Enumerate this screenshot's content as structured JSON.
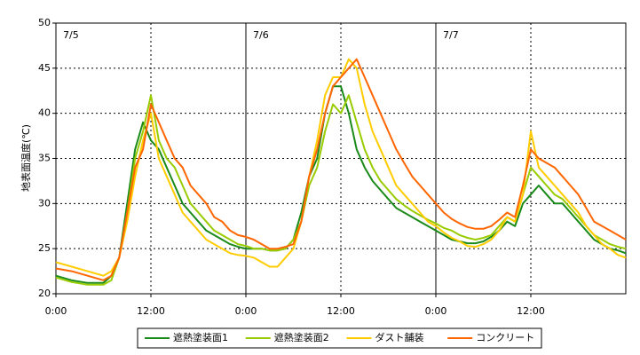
{
  "chart_data": {
    "type": "line",
    "y_label": "地表面温度(℃)",
    "x": [
      0,
      2,
      4,
      6,
      7,
      8,
      9,
      10,
      11,
      12,
      13,
      14,
      15,
      16,
      17,
      18,
      19,
      20,
      21,
      22,
      23,
      24,
      25,
      26,
      27,
      28,
      29,
      30,
      31,
      32,
      33,
      34,
      35,
      36,
      37,
      38,
      39,
      40,
      41,
      42,
      43,
      44,
      45,
      46,
      47,
      48,
      49,
      50,
      51,
      52,
      53,
      54,
      55,
      56,
      57,
      58,
      59,
      60,
      61,
      62,
      63,
      64,
      65,
      66,
      67,
      68,
      69,
      70,
      71,
      72
    ],
    "series": [
      {
        "name": "遮熱塗装面1",
        "color": "#1a8a1a",
        "values": [
          22,
          21.5,
          21.2,
          21.2,
          22,
          24,
          30,
          36,
          39,
          37,
          36,
          34,
          32,
          30,
          29,
          28,
          27,
          26.5,
          26,
          25.5,
          25.2,
          25,
          25,
          25,
          24.8,
          24.8,
          25,
          26,
          29,
          33,
          35,
          40,
          43,
          43,
          40,
          36,
          34,
          32.5,
          31.5,
          30.5,
          29.5,
          29,
          28.5,
          28,
          27.5,
          27,
          26.5,
          26,
          25.8,
          25.6,
          25.6,
          25.8,
          26.3,
          27,
          28,
          27.5,
          30,
          31,
          32,
          31,
          30,
          30,
          29,
          28,
          27,
          26,
          25.5,
          25,
          24.8,
          24.5
        ]
      },
      {
        "name": "遮熱塗装面2",
        "color": "#99cc00",
        "values": [
          21.8,
          21.3,
          21,
          21,
          21.5,
          24,
          29,
          35,
          38,
          42,
          37,
          35,
          34,
          32,
          30,
          29,
          28,
          27,
          26.5,
          26,
          25.5,
          25.3,
          25,
          25,
          24.8,
          24.8,
          25,
          26,
          28,
          32,
          34,
          38,
          41,
          40,
          42,
          39,
          36,
          34,
          32.5,
          31.5,
          30.5,
          29.8,
          29.2,
          28.7,
          28.2,
          27.8,
          27.3,
          27,
          26.5,
          26.2,
          26,
          26.2,
          26.5,
          27.5,
          28.5,
          28,
          31,
          34,
          33,
          32,
          31,
          30.5,
          29.5,
          28.5,
          27.5,
          26.5,
          26,
          25.5,
          25.2,
          25
        ]
      },
      {
        "name": "ダスト舗装",
        "color": "#ffcc00",
        "values": [
          23.5,
          23,
          22.5,
          22,
          22.5,
          24,
          28,
          33,
          37,
          40,
          35,
          33,
          31,
          29,
          28,
          27,
          26,
          25.5,
          25,
          24.5,
          24.3,
          24.2,
          24,
          23.5,
          23,
          23,
          24,
          25,
          28,
          33,
          37,
          42,
          44,
          44,
          46,
          45,
          41,
          38,
          36,
          34,
          32,
          31,
          30,
          29,
          28,
          27.5,
          26.8,
          26.2,
          25.8,
          25.3,
          25.2,
          25.5,
          26,
          27,
          28.5,
          28,
          31,
          38,
          34,
          33,
          32,
          31,
          30,
          29,
          27.5,
          26.5,
          25.5,
          25,
          24.3,
          24
        ]
      },
      {
        "name": "コンクリート",
        "color": "#ff6600",
        "values": [
          22.8,
          22.5,
          22,
          21.5,
          22,
          24,
          29,
          34,
          36,
          41,
          39,
          37,
          35,
          34,
          32,
          31,
          30,
          28.5,
          28,
          27,
          26.5,
          26.3,
          26,
          25.5,
          25,
          25,
          25.2,
          25.5,
          28,
          33,
          36,
          40,
          43,
          44,
          45,
          46,
          44,
          42,
          40,
          38,
          36,
          34.5,
          33,
          32,
          31,
          30,
          29,
          28.3,
          27.8,
          27.4,
          27.2,
          27.2,
          27.5,
          28.2,
          29,
          28.5,
          32,
          36,
          35,
          34.5,
          34,
          33,
          32,
          31,
          29.5,
          28,
          27.5,
          27,
          26.5,
          26
        ]
      }
    ],
    "xlim": [
      0,
      72
    ],
    "xticks": [
      {
        "value": 0,
        "label": "0:00"
      },
      {
        "value": 12,
        "label": "12:00"
      },
      {
        "value": 24,
        "label": "0:00"
      },
      {
        "value": 36,
        "label": "12:00"
      },
      {
        "value": 48,
        "label": "0:00"
      },
      {
        "value": 60,
        "label": "12:00"
      }
    ],
    "ylim": [
      20,
      50
    ],
    "yticks": [
      20,
      25,
      30,
      35,
      40,
      45,
      50
    ],
    "grid": true,
    "annotations": [
      {
        "text": "7/5",
        "x": 0
      },
      {
        "text": "7/6",
        "x": 24
      },
      {
        "text": "7/7",
        "x": 48
      }
    ],
    "legend": "bottom"
  }
}
